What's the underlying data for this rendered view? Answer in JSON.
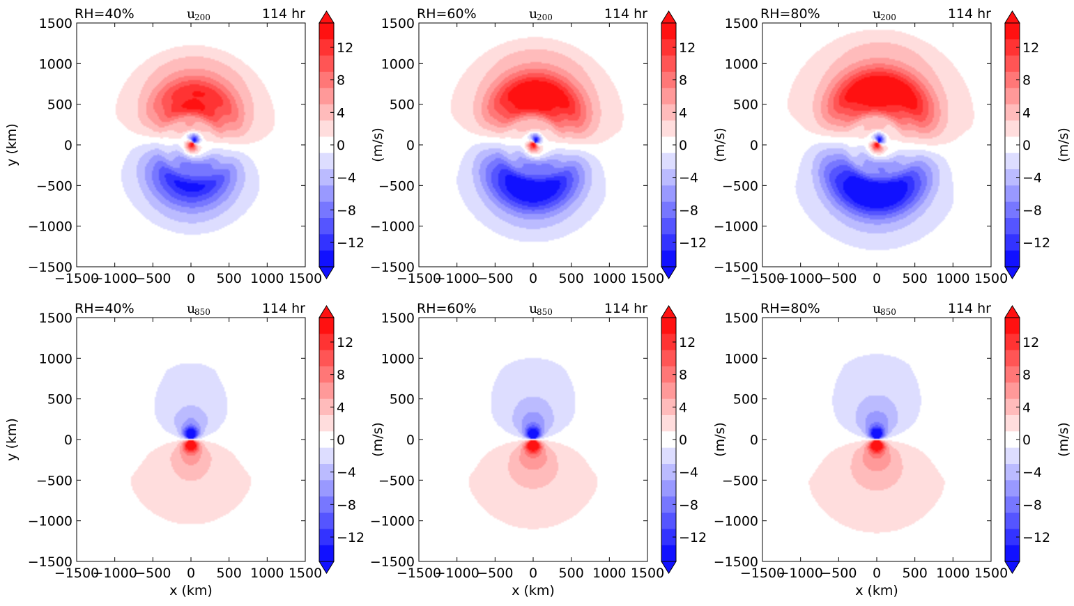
{
  "figure": {
    "background": "#ffffff"
  },
  "colormap": {
    "negative": "#0000ff",
    "zero": "#ffffff",
    "positive": "#ff0000"
  },
  "chart_data": [
    {
      "type": "heatmap",
      "panel": "top-left",
      "corner_left": "RH=40%",
      "variable": "u",
      "variable_sub": "200",
      "corner_right": "114 hr",
      "xlabel": "",
      "ylabel": "y (km)",
      "xlim": [
        -1500,
        1500
      ],
      "ylim": [
        -1500,
        1500
      ],
      "xticks": [
        "−1500",
        "−1000",
        "−500",
        "0",
        "500",
        "1000",
        "1500"
      ],
      "yticks": [
        "1500",
        "1000",
        "500",
        "0",
        "−500",
        "−1000",
        "−1500"
      ],
      "colorbar": {
        "label": "(m/s)",
        "ticks": [
          "12",
          "8",
          "4",
          "0",
          "−4",
          "−8",
          "−12"
        ],
        "range": [
          -15,
          15
        ],
        "extend": "both"
      },
      "features": {
        "center_x": 30,
        "center_y": 30,
        "core_max": 14,
        "core_min": -14,
        "ring_peak": 11,
        "ring_trough": -11,
        "ring_radius": 550,
        "outer_radius": 1000
      }
    },
    {
      "type": "heatmap",
      "panel": "top-middle",
      "corner_left": "RH=60%",
      "variable": "u",
      "variable_sub": "200",
      "corner_right": "114 hr",
      "xlabel": "",
      "ylabel": "",
      "xlim": [
        -1500,
        1500
      ],
      "ylim": [
        -1500,
        1500
      ],
      "xticks": [
        "−1500",
        "−1000",
        "−500",
        "0",
        "500",
        "1000",
        "1500"
      ],
      "yticks": [
        "1500",
        "1000",
        "500",
        "0",
        "−500",
        "−1000",
        "−1500"
      ],
      "colorbar": {
        "label": "(m/s)",
        "ticks": [
          "12",
          "8",
          "4",
          "0",
          "−4",
          "−8",
          "−12"
        ],
        "range": [
          -15,
          15
        ],
        "extend": "both"
      },
      "features": {
        "center_x": 20,
        "center_y": 30,
        "core_max": 14,
        "core_min": -14,
        "ring_peak": 14,
        "ring_trough": -14,
        "ring_radius": 600,
        "outer_radius": 1100
      }
    },
    {
      "type": "heatmap",
      "panel": "top-right",
      "corner_left": "RH=80%",
      "variable": "u",
      "variable_sub": "200",
      "corner_right": "114 hr",
      "xlabel": "",
      "ylabel": "",
      "xlim": [
        -1500,
        1500
      ],
      "ylim": [
        -1500,
        1500
      ],
      "xticks": [
        "−1500",
        "−1000",
        "−500",
        "0",
        "500",
        "1000",
        "1500"
      ],
      "yticks": [
        "1500",
        "1000",
        "500",
        "0",
        "−500",
        "−1000",
        "−1500"
      ],
      "colorbar": {
        "label": "(m/s)",
        "ticks": [
          "12",
          "8",
          "4",
          "0",
          "−4",
          "−8",
          "−12"
        ],
        "range": [
          -15,
          15
        ],
        "extend": "both"
      },
      "features": {
        "center_x": 20,
        "center_y": 30,
        "core_max": 14,
        "core_min": -14,
        "ring_peak": 15,
        "ring_trough": -15,
        "ring_radius": 650,
        "outer_radius": 1200
      }
    },
    {
      "type": "heatmap",
      "panel": "bottom-left",
      "corner_left": "RH=40%",
      "variable": "u",
      "variable_sub": "850",
      "corner_right": "114 hr",
      "xlabel": "x (km)",
      "ylabel": "y (km)",
      "xlim": [
        -1500,
        1500
      ],
      "ylim": [
        -1500,
        1500
      ],
      "xticks": [
        "−1500",
        "−1000",
        "−500",
        "0",
        "500",
        "1000",
        "1500"
      ],
      "yticks": [
        "1500",
        "1000",
        "500",
        "0",
        "−500",
        "−1000",
        "−1500"
      ],
      "colorbar": {
        "label": "(m/s)",
        "ticks": [
          "12",
          "8",
          "4",
          "0",
          "−4",
          "−8",
          "−12"
        ],
        "range": [
          -15,
          15
        ],
        "extend": "both"
      },
      "features": {
        "center_x": 0,
        "center_y": 0,
        "core_max": 15,
        "core_min": -15,
        "halo_strength": 5,
        "halo_radius": 450,
        "outer_radius": 900
      }
    },
    {
      "type": "heatmap",
      "panel": "bottom-middle",
      "corner_left": "RH=60%",
      "variable": "u",
      "variable_sub": "850",
      "corner_right": "114 hr",
      "xlabel": "x (km)",
      "ylabel": "",
      "xlim": [
        -1500,
        1500
      ],
      "ylim": [
        -1500,
        1500
      ],
      "xticks": [
        "−1500",
        "−1000",
        "−500",
        "0",
        "500",
        "1000",
        "1500"
      ],
      "yticks": [
        "1500",
        "1000",
        "500",
        "0",
        "−500",
        "−1000",
        "−1500"
      ],
      "colorbar": {
        "label": "(m/s)",
        "ticks": [
          "12",
          "8",
          "4",
          "0",
          "−4",
          "−8",
          "−12"
        ],
        "range": [
          -15,
          15
        ],
        "extend": "both"
      },
      "features": {
        "center_x": 0,
        "center_y": 0,
        "core_max": 15,
        "core_min": -15,
        "halo_strength": 6,
        "halo_radius": 500,
        "outer_radius": 950
      }
    },
    {
      "type": "heatmap",
      "panel": "bottom-right",
      "corner_left": "RH=80%",
      "variable": "u",
      "variable_sub": "850",
      "corner_right": "114 hr",
      "xlabel": "x (km)",
      "ylabel": "",
      "xlim": [
        -1500,
        1500
      ],
      "ylim": [
        -1500,
        1500
      ],
      "xticks": [
        "−1500",
        "−1000",
        "−500",
        "0",
        "500",
        "1000",
        "1500"
      ],
      "yticks": [
        "1500",
        "1000",
        "500",
        "0",
        "−500",
        "−1000",
        "−1500"
      ],
      "colorbar": {
        "label": "(m/s)",
        "ticks": [
          "12",
          "8",
          "4",
          "0",
          "−4",
          "−8",
          "−12"
        ],
        "range": [
          -15,
          15
        ],
        "extend": "both"
      },
      "features": {
        "center_x": 0,
        "center_y": 0,
        "core_max": 15,
        "core_min": -15,
        "halo_strength": 6,
        "halo_radius": 520,
        "outer_radius": 1000
      }
    }
  ]
}
